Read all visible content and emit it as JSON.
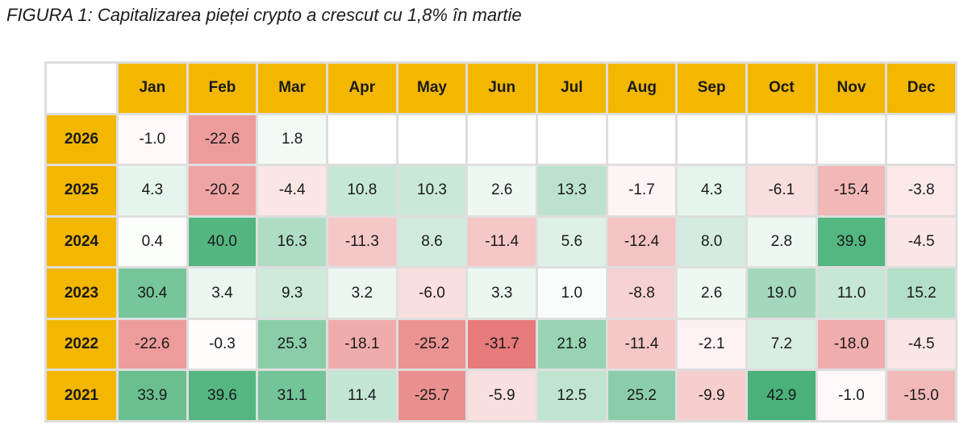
{
  "title": "FIGURA 1: Capitalizarea pieței crypto a crescut cu 1,8% în martie",
  "colors": {
    "header": "#f3b700",
    "positive": "#3fad72",
    "negative": "#e67373",
    "neutral": "#ffffff"
  },
  "chart_data": {
    "type": "heatmap",
    "columns": [
      "Jan",
      "Feb",
      "Mar",
      "Apr",
      "May",
      "Jun",
      "Jul",
      "Aug",
      "Sep",
      "Oct",
      "Nov",
      "Dec"
    ],
    "rows": [
      "2026",
      "2025",
      "2024",
      "2023",
      "2022",
      "2021"
    ],
    "values": [
      [
        "-1.0",
        "-22.6",
        "1.8",
        "",
        "",
        "",
        "",
        "",
        "",
        "",
        "",
        ""
      ],
      [
        "4.3",
        "-20.2",
        "-4.4",
        "10.8",
        "10.3",
        "2.6",
        "13.3",
        "-1.7",
        "4.3",
        "-6.1",
        "-15.4",
        "-3.8"
      ],
      [
        "0.4",
        "40.0",
        "16.3",
        "-11.3",
        "8.6",
        "-11.4",
        "5.6",
        "-12.4",
        "8.0",
        "2.8",
        "39.9",
        "-4.5"
      ],
      [
        "30.4",
        "3.4",
        "9.3",
        "3.2",
        "-6.0",
        "3.3",
        "1.0",
        "-8.8",
        "2.6",
        "19.0",
        "11.0",
        "15.2"
      ],
      [
        "-22.6",
        "-0.3",
        "25.3",
        "-18.1",
        "-25.2",
        "-31.7",
        "21.8",
        "-11.4",
        "-2.1",
        "7.2",
        "-18.0",
        "-4.5"
      ],
      [
        "33.9",
        "39.6",
        "31.1",
        "11.4",
        "-25.7",
        "-5.9",
        "12.5",
        "25.2",
        "-9.9",
        "42.9",
        "-1.0",
        "-15.0"
      ]
    ],
    "color_scale": {
      "negative_max": -31.7,
      "positive_max": 42.9
    }
  }
}
